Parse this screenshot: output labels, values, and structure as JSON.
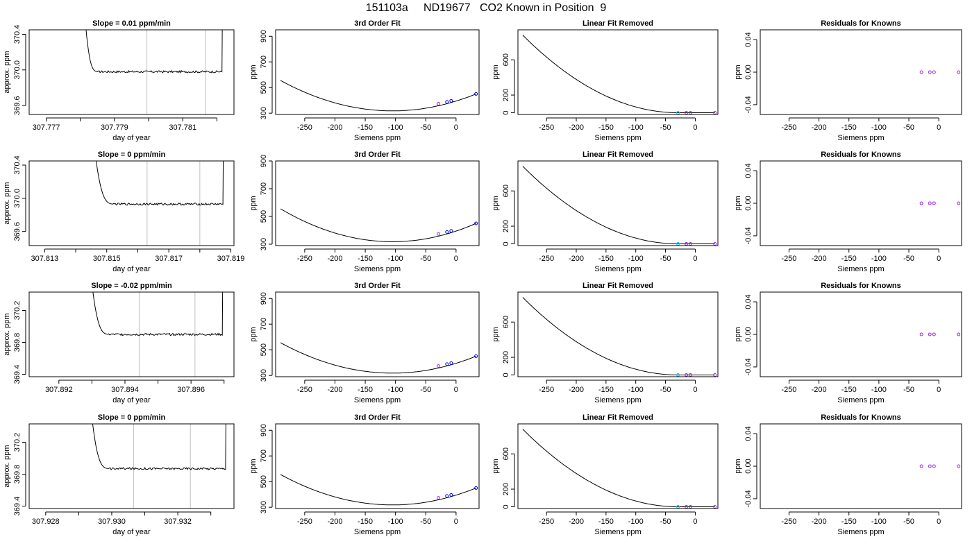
{
  "title": "151103a     ND19677   CO2 Known in Position  9",
  "labels": {
    "day_of_year": "day of year",
    "approx_ppm": "approx. ppm",
    "siemens_ppm": "Siemens ppm",
    "ppm": "ppm",
    "third_order_fit": "3rd Order Fit",
    "linear_fit_removed": "Linear Fit Removed",
    "residuals": "Residuals for Knowns"
  },
  "colors": {
    "line": "#000000",
    "vline": "#bebebe",
    "known_points": "#0000ff",
    "residual_points": "#a020f0",
    "highlight_point": "#00bfff"
  },
  "chart_data": [
    {
      "type": "line",
      "panel": "timeseries",
      "title": "Slope =  0.01  ppm/min",
      "xlabel": "day of year",
      "ylabel": "approx. ppm",
      "xlim": [
        307.7765,
        307.7825
      ],
      "ylim": [
        369.5,
        370.45
      ],
      "xticks": [
        "307.777",
        "307.779",
        "307.781"
      ],
      "xtick_values": [
        307.777,
        307.779,
        307.781
      ],
      "minor_xticks": [
        307.778,
        307.78,
        307.782
      ],
      "yticks": [
        "369.6",
        "370.0",
        "370.4"
      ],
      "ytick_values": [
        369.6,
        370.0,
        370.4
      ],
      "vlines": [
        307.77995,
        307.78167
      ],
      "plateau": 369.98,
      "trace_start": 307.778,
      "settle": 307.7785,
      "trace_end": 307.7822
    },
    {
      "type": "scatter",
      "panel": "fit",
      "title": "3rd Order Fit",
      "xlabel": "Siemens ppm",
      "ylabel": "ppm",
      "xlim": [
        -298,
        38
      ],
      "ylim": [
        290,
        950
      ],
      "xticks": [
        "-250",
        "-200",
        "-150",
        "-100",
        "-50",
        "0"
      ],
      "xtick_values": [
        -250,
        -200,
        -150,
        -100,
        -50,
        0
      ],
      "yticks": [
        "300",
        "500",
        "700",
        "900"
      ],
      "ytick_values": [
        300,
        500,
        700,
        900
      ],
      "curve_x": [
        -290,
        33
      ],
      "vertex": [
        -105,
        318
      ],
      "points": [
        {
          "x": -29,
          "y": 373
        },
        {
          "x": -15,
          "y": 388
        },
        {
          "x": -8,
          "y": 396
        },
        {
          "x": 33,
          "y": 450
        }
      ]
    },
    {
      "type": "scatter",
      "panel": "removed",
      "title": "Linear Fit Removed",
      "xlabel": "Siemens ppm",
      "ylabel": "ppm",
      "xlim": [
        -298,
        38
      ],
      "ylim": [
        -20,
        940
      ],
      "xticks": [
        "-250",
        "-200",
        "-150",
        "-100",
        "-50",
        "0"
      ],
      "xtick_values": [
        -250,
        -200,
        -150,
        -100,
        -50,
        0
      ],
      "yticks": [
        "0",
        "200",
        "600"
      ],
      "ytick_values": [
        0,
        200,
        600
      ],
      "curve_x": [
        -290,
        33
      ],
      "curve_top": 880,
      "points": [
        {
          "x": -29,
          "y": 0
        },
        {
          "x": -15,
          "y": 0
        },
        {
          "x": -8,
          "y": 0
        },
        {
          "x": 33,
          "y": 0
        }
      ]
    },
    {
      "type": "scatter",
      "panel": "residuals",
      "title": "Residuals for Knowns",
      "xlabel": "Siemens ppm",
      "ylabel": "ppm",
      "xlim": [
        -298,
        38
      ],
      "ylim": [
        -0.052,
        0.052
      ],
      "xticks": [
        "-250",
        "-200",
        "-150",
        "-100",
        "-50",
        "0"
      ],
      "xtick_values": [
        -250,
        -200,
        -150,
        -100,
        -50,
        0
      ],
      "yticks": [
        "-0.04",
        "0.00",
        "0.04"
      ],
      "ytick_values": [
        -0.04,
        0.0,
        0.04
      ],
      "points": [
        {
          "x": -29,
          "y": 0
        },
        {
          "x": -15,
          "y": 0
        },
        {
          "x": -8,
          "y": 0
        },
        {
          "x": 33,
          "y": 0
        }
      ]
    },
    {
      "type": "line",
      "panel": "timeseries",
      "title": "Slope =  0  ppm/min",
      "xlabel": "day of year",
      "ylabel": "approx. ppm",
      "xlim": [
        307.8125,
        307.8191
      ],
      "ylim": [
        369.43,
        370.45
      ],
      "xticks": [
        "307.813",
        "307.815",
        "307.817",
        "307.819"
      ],
      "xtick_values": [
        307.813,
        307.815,
        307.817,
        307.819
      ],
      "minor_xticks": [
        307.814,
        307.816,
        307.818
      ],
      "yticks": [
        "369.6",
        "370.0",
        "370.4"
      ],
      "ytick_values": [
        369.6,
        370.0,
        370.4
      ],
      "vlines": [
        307.8163,
        307.818
      ],
      "plateau": 369.93,
      "trace_start": 307.8144,
      "settle": 307.8152,
      "trace_end": 307.8188
    },
    {
      "type": "scatter",
      "panel": "fit",
      "title": "3rd Order Fit",
      "xlabel": "Siemens ppm",
      "ylabel": "ppm",
      "xlim": [
        -298,
        38
      ],
      "ylim": [
        290,
        900
      ],
      "xticks": [
        "-250",
        "-200",
        "-150",
        "-100",
        "-50",
        "0"
      ],
      "xtick_values": [
        -250,
        -200,
        -150,
        -100,
        -50,
        0
      ],
      "yticks": [
        "300",
        "500",
        "700",
        "900"
      ],
      "ytick_values": [
        300,
        500,
        700,
        900
      ],
      "curve_x": [
        -290,
        33
      ],
      "vertex": [
        -105,
        318
      ],
      "points": [
        {
          "x": -29,
          "y": 373
        },
        {
          "x": -15,
          "y": 388
        },
        {
          "x": -8,
          "y": 396
        },
        {
          "x": 33,
          "y": 450
        }
      ]
    },
    {
      "type": "scatter",
      "panel": "removed",
      "title": "Linear Fit Removed",
      "xlabel": "Siemens ppm",
      "ylabel": "ppm",
      "xlim": [
        -298,
        38
      ],
      "ylim": [
        -20,
        940
      ],
      "xticks": [
        "-250",
        "-200",
        "-150",
        "-100",
        "-50",
        "0"
      ],
      "xtick_values": [
        -250,
        -200,
        -150,
        -100,
        -50,
        0
      ],
      "yticks": [
        "0",
        "200",
        "600"
      ],
      "ytick_values": [
        0,
        200,
        600
      ],
      "curve_x": [
        -290,
        33
      ],
      "curve_top": 880,
      "points": [
        {
          "x": -29,
          "y": 0
        },
        {
          "x": -15,
          "y": 0
        },
        {
          "x": -8,
          "y": 0
        },
        {
          "x": 33,
          "y": 0
        }
      ]
    },
    {
      "type": "scatter",
      "panel": "residuals",
      "title": "Residuals for Knowns",
      "xlabel": "Siemens ppm",
      "ylabel": "ppm",
      "xlim": [
        -298,
        38
      ],
      "ylim": [
        -0.052,
        0.052
      ],
      "xticks": [
        "-250",
        "-200",
        "-150",
        "-100",
        "-50",
        "0"
      ],
      "xtick_values": [
        -250,
        -200,
        -150,
        -100,
        -50,
        0
      ],
      "yticks": [
        "-0.04",
        "0.00",
        "0.04"
      ],
      "ytick_values": [
        -0.04,
        0.0,
        0.04
      ],
      "points": [
        {
          "x": -29,
          "y": 0
        },
        {
          "x": -15,
          "y": 0
        },
        {
          "x": -8,
          "y": 0
        },
        {
          "x": 33,
          "y": 0
        }
      ]
    },
    {
      "type": "line",
      "panel": "timeseries",
      "title": "Slope =  -0.02  ppm/min",
      "xlabel": "day of year",
      "ylabel": "approx. ppm",
      "xlim": [
        307.8911,
        307.8973
      ],
      "ylim": [
        369.37,
        370.43
      ],
      "xticks": [
        "307.892",
        "307.894",
        "307.896"
      ],
      "xtick_values": [
        307.892,
        307.894,
        307.896
      ],
      "minor_xticks": [
        307.893,
        307.895,
        307.897
      ],
      "yticks": [
        "369.4",
        "369.8",
        "370.2"
      ],
      "ytick_values": [
        369.4,
        369.8,
        370.2
      ],
      "vlines": [
        307.89443,
        307.89612
      ],
      "plateau": 369.9,
      "trace_start": 307.8928,
      "settle": 307.8935,
      "trace_end": 307.897
    },
    {
      "type": "scatter",
      "panel": "fit",
      "title": "3rd Order Fit",
      "xlabel": "Siemens ppm",
      "ylabel": "ppm",
      "xlim": [
        -298,
        38
      ],
      "ylim": [
        290,
        950
      ],
      "xticks": [
        "-250",
        "-200",
        "-150",
        "-100",
        "-50",
        "0"
      ],
      "xtick_values": [
        -250,
        -200,
        -150,
        -100,
        -50,
        0
      ],
      "yticks": [
        "300",
        "500",
        "700",
        "900"
      ],
      "ytick_values": [
        300,
        500,
        700,
        900
      ],
      "curve_x": [
        -290,
        33
      ],
      "vertex": [
        -105,
        318
      ],
      "points": [
        {
          "x": -29,
          "y": 373
        },
        {
          "x": -15,
          "y": 388
        },
        {
          "x": -8,
          "y": 396
        },
        {
          "x": 33,
          "y": 450
        }
      ]
    },
    {
      "type": "scatter",
      "panel": "removed",
      "title": "Linear Fit Removed",
      "xlabel": "Siemens ppm",
      "ylabel": "ppm",
      "xlim": [
        -298,
        38
      ],
      "ylim": [
        -20,
        940
      ],
      "xticks": [
        "-250",
        "-200",
        "-150",
        "-100",
        "-50",
        "0"
      ],
      "xtick_values": [
        -250,
        -200,
        -150,
        -100,
        -50,
        0
      ],
      "yticks": [
        "0",
        "200",
        "600"
      ],
      "ytick_values": [
        0,
        200,
        600
      ],
      "curve_x": [
        -290,
        33
      ],
      "curve_top": 880,
      "points": [
        {
          "x": -29,
          "y": 0
        },
        {
          "x": -15,
          "y": 0
        },
        {
          "x": -8,
          "y": 0
        },
        {
          "x": 33,
          "y": 0
        }
      ]
    },
    {
      "type": "scatter",
      "panel": "residuals",
      "title": "Residuals for Knowns",
      "xlabel": "Siemens ppm",
      "ylabel": "ppm",
      "xlim": [
        -298,
        38
      ],
      "ylim": [
        -0.052,
        0.052
      ],
      "xticks": [
        "-250",
        "-200",
        "-150",
        "-100",
        "-50",
        "0"
      ],
      "xtick_values": [
        -250,
        -200,
        -150,
        -100,
        -50,
        0
      ],
      "yticks": [
        "-0.04",
        "0.00",
        "0.04"
      ],
      "ytick_values": [
        -0.04,
        0.0,
        0.04
      ],
      "points": [
        {
          "x": -29,
          "y": 0
        },
        {
          "x": -15,
          "y": 0
        },
        {
          "x": -8,
          "y": 0
        },
        {
          "x": 33,
          "y": 0
        }
      ]
    },
    {
      "type": "line",
      "panel": "timeseries",
      "title": "Slope =  0  ppm/min",
      "xlabel": "day of year",
      "ylabel": "approx. ppm",
      "xlim": [
        307.9275,
        307.9337
      ],
      "ylim": [
        369.37,
        370.43
      ],
      "xticks": [
        "307.928",
        "307.930",
        "307.932"
      ],
      "xtick_values": [
        307.928,
        307.93,
        307.932
      ],
      "minor_xticks": [
        307.929,
        307.931,
        307.933
      ],
      "yticks": [
        "369.4",
        "369.8",
        "370.2"
      ],
      "ytick_values": [
        369.4,
        369.8,
        370.2
      ],
      "vlines": [
        307.93066,
        307.93238
      ],
      "plateau": 369.87,
      "trace_start": 307.9292,
      "settle": 307.9299,
      "trace_end": 307.9335
    },
    {
      "type": "scatter",
      "panel": "fit",
      "title": "3rd Order Fit",
      "xlabel": "Siemens ppm",
      "ylabel": "ppm",
      "xlim": [
        -298,
        38
      ],
      "ylim": [
        290,
        950
      ],
      "xticks": [
        "-250",
        "-200",
        "-150",
        "-100",
        "-50",
        "0"
      ],
      "xtick_values": [
        -250,
        -200,
        -150,
        -100,
        -50,
        0
      ],
      "yticks": [
        "300",
        "500",
        "700",
        "900"
      ],
      "ytick_values": [
        300,
        500,
        700,
        900
      ],
      "curve_x": [
        -290,
        33
      ],
      "vertex": [
        -105,
        318
      ],
      "points": [
        {
          "x": -29,
          "y": 373
        },
        {
          "x": -15,
          "y": 388
        },
        {
          "x": -8,
          "y": 396
        },
        {
          "x": 33,
          "y": 450
        }
      ]
    },
    {
      "type": "scatter",
      "panel": "removed",
      "title": "Linear Fit Removed",
      "xlabel": "Siemens ppm",
      "ylabel": "ppm",
      "xlim": [
        -298,
        38
      ],
      "ylim": [
        -20,
        940
      ],
      "xticks": [
        "-250",
        "-200",
        "-150",
        "-100",
        "-50",
        "0"
      ],
      "xtick_values": [
        -250,
        -200,
        -150,
        -100,
        -50,
        0
      ],
      "yticks": [
        "0",
        "200",
        "600"
      ],
      "ytick_values": [
        0,
        200,
        600
      ],
      "curve_x": [
        -290,
        33
      ],
      "curve_top": 880,
      "points": [
        {
          "x": -29,
          "y": 0
        },
        {
          "x": -15,
          "y": 0
        },
        {
          "x": -8,
          "y": 0
        },
        {
          "x": 33,
          "y": 0
        }
      ]
    },
    {
      "type": "scatter",
      "panel": "residuals",
      "title": "Residuals for Knowns",
      "xlabel": "Siemens ppm",
      "ylabel": "ppm",
      "xlim": [
        -298,
        38
      ],
      "ylim": [
        -0.052,
        0.052
      ],
      "xticks": [
        "-250",
        "-200",
        "-150",
        "-100",
        "-50",
        "0"
      ],
      "xtick_values": [
        -250,
        -200,
        -150,
        -100,
        -50,
        0
      ],
      "yticks": [
        "-0.04",
        "0.00",
        "0.04"
      ],
      "ytick_values": [
        -0.04,
        0.0,
        0.04
      ],
      "points": [
        {
          "x": -29,
          "y": 0
        },
        {
          "x": -15,
          "y": 0
        },
        {
          "x": -8,
          "y": 0
        },
        {
          "x": 33,
          "y": 0
        }
      ]
    }
  ]
}
